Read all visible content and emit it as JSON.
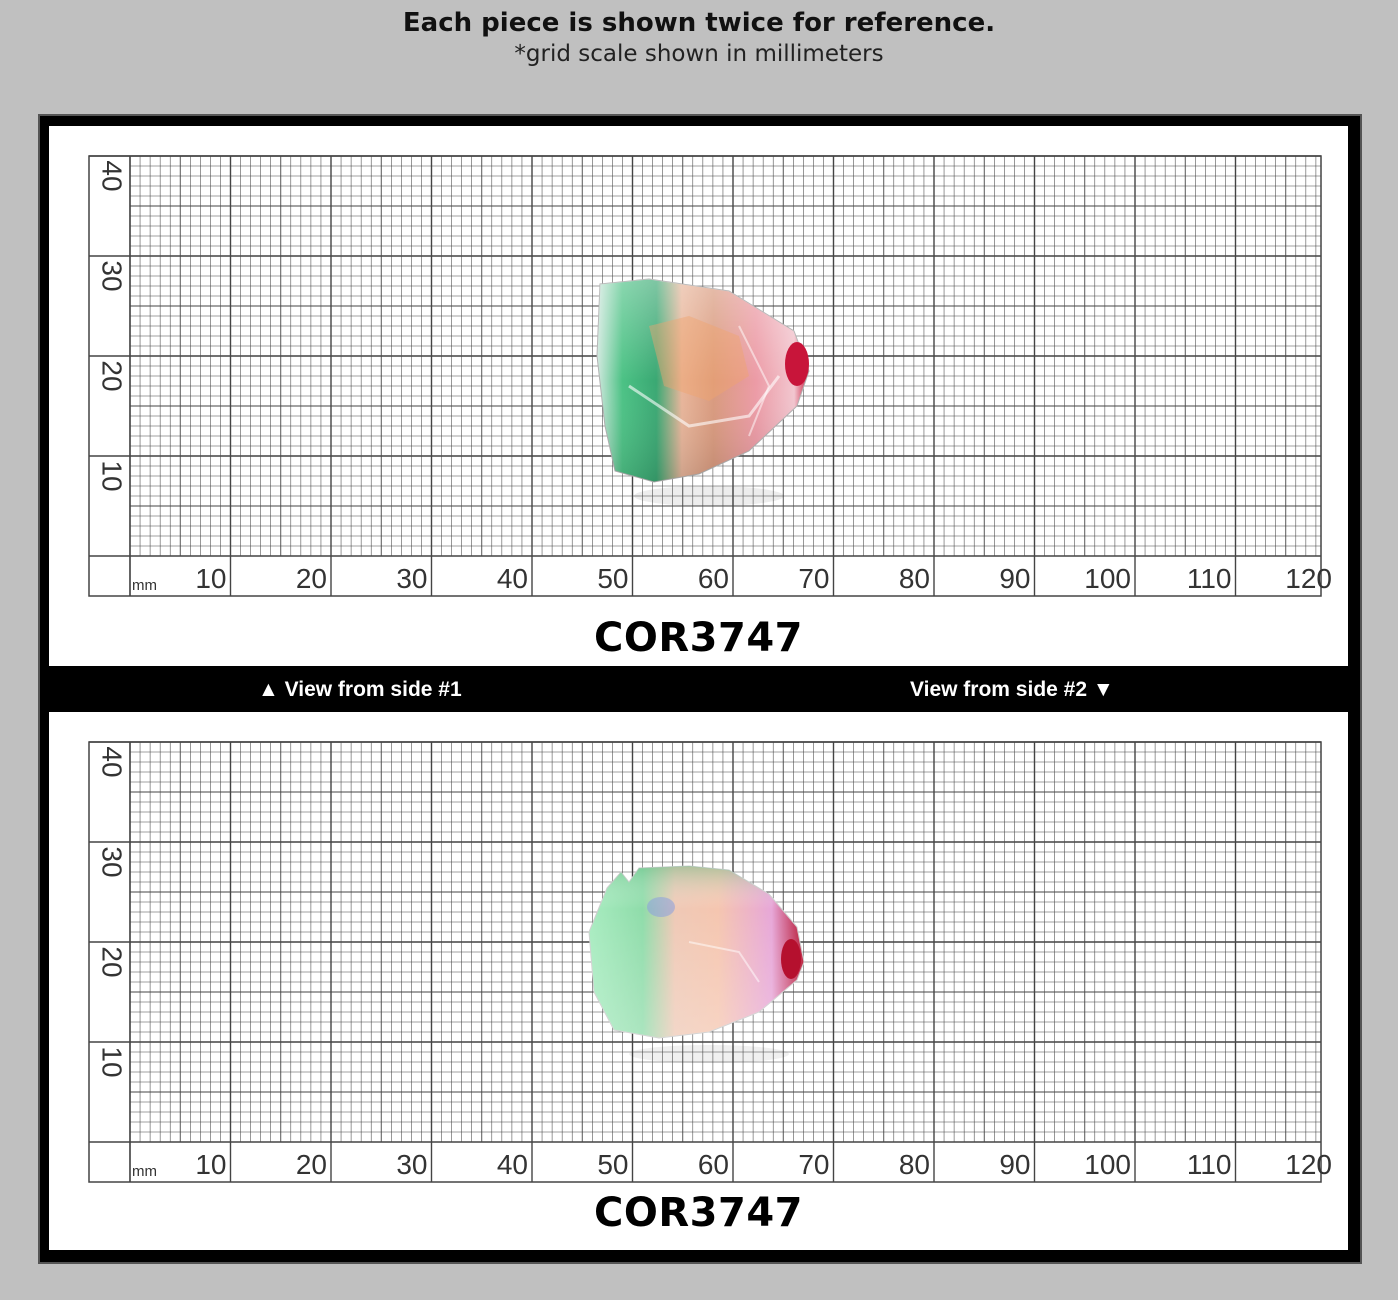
{
  "header": {
    "title": "Each piece is shown twice for reference.",
    "subtitle": "*grid scale shown in millimeters"
  },
  "colors": {
    "background": "#c0c0c0",
    "frame": "#000000",
    "panel": "#ffffff",
    "grid_line": "#444444"
  },
  "grid": {
    "x_unit": "mm",
    "x_ticks": [
      "10",
      "20",
      "30",
      "40",
      "50",
      "60",
      "70",
      "80",
      "90",
      "100",
      "110",
      "120"
    ],
    "y_ticks": [
      "10",
      "20",
      "30",
      "40"
    ]
  },
  "panels": [
    {
      "piece_code": "COR3747",
      "gem": {
        "name": "tourmaline-slice-side-1",
        "colors": [
          "#3fb87a",
          "#e3a08a",
          "#e88a95",
          "#c8153a"
        ]
      }
    },
    {
      "piece_code": "COR3747",
      "gem": {
        "name": "tourmaline-slice-side-2",
        "colors": [
          "#8fe0ac",
          "#f2c4b0",
          "#e5a9d6",
          "#b5102e"
        ]
      }
    }
  ],
  "view_labels": {
    "side_1": "▲ View from side #1",
    "side_2": "View from side #2 ▼"
  }
}
